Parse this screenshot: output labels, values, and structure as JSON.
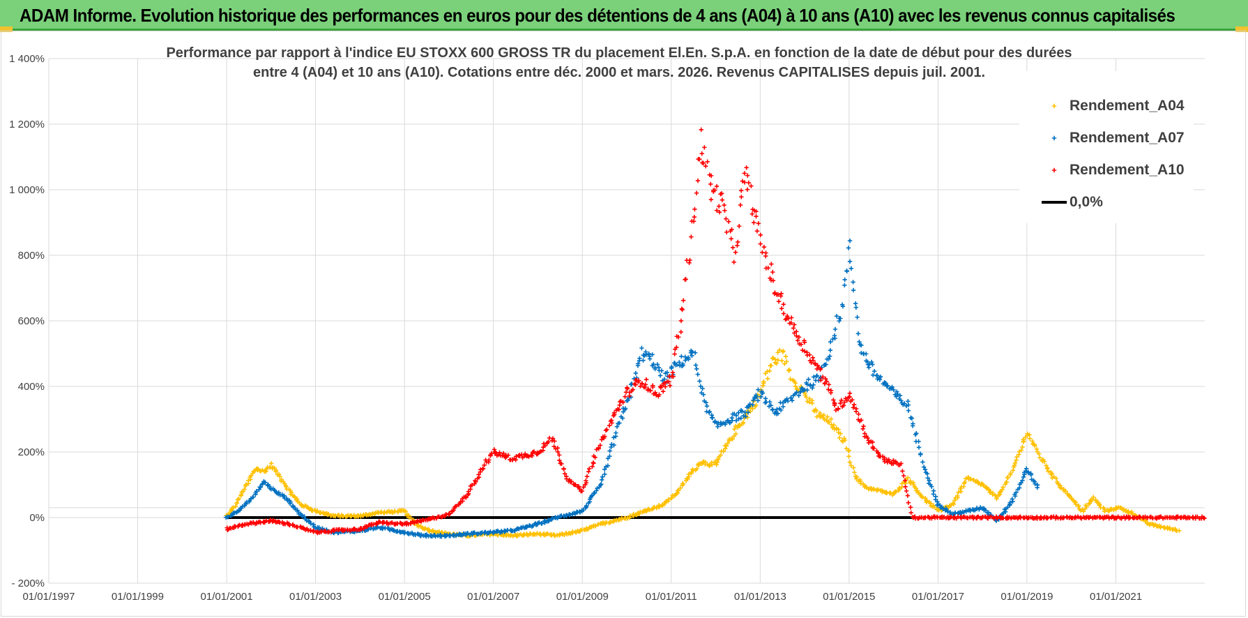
{
  "banner": {
    "title": "ADAM Informe. Evolution historique des performances en euros pour des détentions de 4 ans (A04) à 10 ans (A10) avec les revenus connus capitalisés"
  },
  "colors": {
    "banner_bg": "#7ad17a",
    "A04": "#ffc000",
    "A07": "#0070c0",
    "A10": "#ff0000",
    "zero_line": "#000000",
    "grid": "#d9d9d9"
  },
  "chart_data": {
    "type": "scatter",
    "title": "Performance par rapport à l'indice EU STOXX 600 GROSS TR  du placement El.En. S.p.A. en fonction de la date de début pour des durées",
    "subtitle": "entre 4 (A04) et 10 ans (A10). Cotations entre déc. 2000 et mars. 2026. Revenus CAPITALISES depuis juil. 2001.",
    "xlabel": "",
    "ylabel": "",
    "x_type": "date",
    "xlim": [
      "1997-01-01",
      "2023-01-01"
    ],
    "x_ticks": [
      "01/01/1997",
      "01/01/1999",
      "01/01/2001",
      "01/01/2003",
      "01/01/2005",
      "01/01/2007",
      "01/01/2009",
      "01/01/2011",
      "01/01/2013",
      "01/01/2015",
      "01/01/2017",
      "01/01/2019",
      "01/01/2021"
    ],
    "ylim": [
      -200,
      1400
    ],
    "y_ticks": [
      -200,
      0,
      200,
      400,
      600,
      800,
      1000,
      1200,
      1400
    ],
    "y_tick_labels": [
      "- 200%",
      "0%",
      "200%",
      "400%",
      "600%",
      "800%",
      "1 000%",
      "1 200%",
      "1 400%"
    ],
    "grid": true,
    "legend_position": "top-right",
    "series": [
      {
        "name": "Rendement_A04",
        "marker": "+",
        "points": [
          [
            "2001-01-01",
            5
          ],
          [
            "2001-03-01",
            30
          ],
          [
            "2001-05-01",
            70
          ],
          [
            "2001-07-01",
            110
          ],
          [
            "2001-09-01",
            150
          ],
          [
            "2001-11-01",
            140
          ],
          [
            "2002-01-01",
            160
          ],
          [
            "2002-03-01",
            130
          ],
          [
            "2002-06-01",
            80
          ],
          [
            "2002-09-01",
            40
          ],
          [
            "2003-01-01",
            20
          ],
          [
            "2003-06-01",
            5
          ],
          [
            "2004-01-01",
            5
          ],
          [
            "2004-06-01",
            15
          ],
          [
            "2005-01-01",
            20
          ],
          [
            "2005-04-01",
            -20
          ],
          [
            "2005-08-01",
            -40
          ],
          [
            "2006-01-01",
            -50
          ],
          [
            "2006-06-01",
            -55
          ],
          [
            "2007-01-01",
            -50
          ],
          [
            "2007-06-01",
            -55
          ],
          [
            "2008-01-01",
            -50
          ],
          [
            "2008-06-01",
            -55
          ],
          [
            "2009-01-01",
            -40
          ],
          [
            "2009-06-01",
            -20
          ],
          [
            "2010-01-01",
            0
          ],
          [
            "2010-06-01",
            20
          ],
          [
            "2010-11-01",
            40
          ],
          [
            "2011-03-01",
            80
          ],
          [
            "2011-06-01",
            130
          ],
          [
            "2011-09-01",
            170
          ],
          [
            "2012-01-01",
            160
          ],
          [
            "2012-06-01",
            260
          ],
          [
            "2012-11-01",
            340
          ],
          [
            "2013-01-01",
            380
          ],
          [
            "2013-04-01",
            470
          ],
          [
            "2013-07-01",
            500
          ],
          [
            "2013-10-01",
            420
          ],
          [
            "2014-01-01",
            380
          ],
          [
            "2014-04-01",
            320
          ],
          [
            "2014-08-01",
            290
          ],
          [
            "2014-12-01",
            230
          ],
          [
            "2015-03-01",
            120
          ],
          [
            "2015-06-01",
            90
          ],
          [
            "2015-10-01",
            80
          ],
          [
            "2016-01-01",
            70
          ],
          [
            "2016-05-01",
            120
          ],
          [
            "2016-09-01",
            60
          ],
          [
            "2017-01-01",
            20
          ],
          [
            "2017-05-01",
            40
          ],
          [
            "2017-09-01",
            120
          ],
          [
            "2018-01-01",
            100
          ],
          [
            "2018-05-01",
            60
          ],
          [
            "2018-09-01",
            140
          ],
          [
            "2019-01-01",
            260
          ],
          [
            "2019-05-01",
            180
          ],
          [
            "2019-09-01",
            110
          ],
          [
            "2020-01-01",
            60
          ],
          [
            "2020-04-01",
            20
          ],
          [
            "2020-07-01",
            60
          ],
          [
            "2020-10-01",
            20
          ],
          [
            "2021-02-01",
            30
          ],
          [
            "2021-06-01",
            10
          ],
          [
            "2021-10-01",
            -20
          ],
          [
            "2022-02-01",
            -30
          ],
          [
            "2022-06-01",
            -40
          ]
        ]
      },
      {
        "name": "Rendement_A07",
        "marker": "+",
        "points": [
          [
            "2001-01-01",
            0
          ],
          [
            "2001-04-01",
            20
          ],
          [
            "2001-08-01",
            60
          ],
          [
            "2001-11-01",
            110
          ],
          [
            "2002-02-01",
            80
          ],
          [
            "2002-05-01",
            60
          ],
          [
            "2002-09-01",
            10
          ],
          [
            "2003-01-01",
            -30
          ],
          [
            "2003-06-01",
            -45
          ],
          [
            "2004-01-01",
            -40
          ],
          [
            "2004-06-01",
            -30
          ],
          [
            "2005-01-01",
            -45
          ],
          [
            "2005-06-01",
            -55
          ],
          [
            "2006-01-01",
            -55
          ],
          [
            "2006-06-01",
            -50
          ],
          [
            "2007-01-01",
            -45
          ],
          [
            "2007-06-01",
            -40
          ],
          [
            "2008-01-01",
            -20
          ],
          [
            "2008-06-01",
            0
          ],
          [
            "2009-01-01",
            20
          ],
          [
            "2009-06-01",
            100
          ],
          [
            "2009-10-01",
            250
          ],
          [
            "2010-02-01",
            380
          ],
          [
            "2010-05-01",
            500
          ],
          [
            "2010-08-01",
            480
          ],
          [
            "2010-11-01",
            420
          ],
          [
            "2011-03-01",
            470
          ],
          [
            "2011-07-01",
            500
          ],
          [
            "2011-10-01",
            350
          ],
          [
            "2012-01-01",
            280
          ],
          [
            "2012-05-01",
            300
          ],
          [
            "2012-09-01",
            320
          ],
          [
            "2013-01-01",
            380
          ],
          [
            "2013-05-01",
            320
          ],
          [
            "2013-09-01",
            360
          ],
          [
            "2014-01-01",
            400
          ],
          [
            "2014-05-01",
            420
          ],
          [
            "2014-08-01",
            520
          ],
          [
            "2014-11-01",
            640
          ],
          [
            "2015-01-01",
            820
          ],
          [
            "2015-04-01",
            520
          ],
          [
            "2015-08-01",
            440
          ],
          [
            "2016-01-01",
            380
          ],
          [
            "2016-05-01",
            340
          ],
          [
            "2016-09-01",
            160
          ],
          [
            "2017-01-01",
            40
          ],
          [
            "2017-05-01",
            10
          ],
          [
            "2017-09-01",
            20
          ],
          [
            "2018-01-01",
            30
          ],
          [
            "2018-05-01",
            -10
          ],
          [
            "2018-09-01",
            50
          ],
          [
            "2019-01-01",
            150
          ],
          [
            "2019-04-01",
            90
          ]
        ]
      },
      {
        "name": "Rendement_A10",
        "marker": "+",
        "points": [
          [
            "2001-01-01",
            -35
          ],
          [
            "2001-06-01",
            -20
          ],
          [
            "2002-01-01",
            -10
          ],
          [
            "2002-06-01",
            -20
          ],
          [
            "2003-01-01",
            -45
          ],
          [
            "2003-06-01",
            -40
          ],
          [
            "2004-01-01",
            -35
          ],
          [
            "2004-06-01",
            -15
          ],
          [
            "2005-01-01",
            -20
          ],
          [
            "2005-06-01",
            -10
          ],
          [
            "2006-01-01",
            10
          ],
          [
            "2006-06-01",
            70
          ],
          [
            "2006-10-01",
            150
          ],
          [
            "2007-01-01",
            200
          ],
          [
            "2007-06-01",
            180
          ],
          [
            "2008-01-01",
            200
          ],
          [
            "2008-05-01",
            240
          ],
          [
            "2008-09-01",
            120
          ],
          [
            "2009-01-01",
            80
          ],
          [
            "2009-05-01",
            200
          ],
          [
            "2009-09-01",
            300
          ],
          [
            "2010-01-01",
            380
          ],
          [
            "2010-05-01",
            420
          ],
          [
            "2010-09-01",
            380
          ],
          [
            "2011-01-01",
            420
          ],
          [
            "2011-04-01",
            620
          ],
          [
            "2011-07-01",
            900
          ],
          [
            "2011-09-01",
            1150
          ],
          [
            "2011-12-01",
            1000
          ],
          [
            "2012-03-01",
            950
          ],
          [
            "2012-06-01",
            800
          ],
          [
            "2012-09-01",
            1050
          ],
          [
            "2013-01-01",
            850
          ],
          [
            "2013-05-01",
            700
          ],
          [
            "2013-09-01",
            600
          ],
          [
            "2014-01-01",
            520
          ],
          [
            "2014-06-01",
            430
          ],
          [
            "2014-10-01",
            330
          ],
          [
            "2015-01-01",
            380
          ],
          [
            "2015-06-01",
            240
          ],
          [
            "2015-10-01",
            180
          ],
          [
            "2016-03-01",
            160
          ],
          [
            "2016-06-01",
            0
          ],
          [
            "2017-01-01",
            0
          ],
          [
            "2018-01-01",
            0
          ],
          [
            "2019-01-01",
            0
          ],
          [
            "2020-01-01",
            0
          ],
          [
            "2021-01-01",
            0
          ],
          [
            "2022-01-01",
            0
          ],
          [
            "2023-01-01",
            0
          ]
        ]
      },
      {
        "name": "0,0%",
        "marker": "line",
        "points": [
          [
            "2001-01-01",
            0
          ],
          [
            "2016-06-01",
            0
          ]
        ]
      }
    ]
  }
}
